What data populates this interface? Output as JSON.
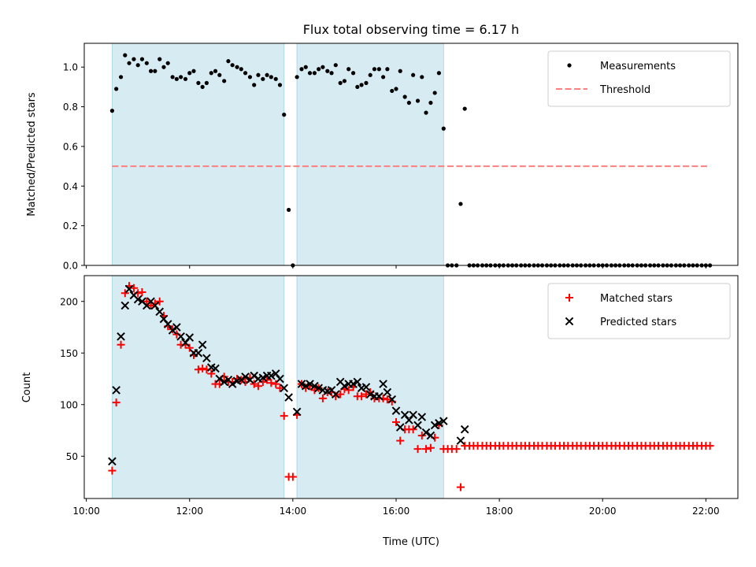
{
  "chart_data": [
    {
      "type": "scatter",
      "title": "Flux total observing time = 6.17 h",
      "xlabel": "",
      "ylabel": "Matched/Predicted stars",
      "xlim": [
        9.96,
        22.62
      ],
      "ylim": [
        0.0,
        1.12
      ],
      "yticks": [
        0.0,
        0.2,
        0.4,
        0.6,
        0.8,
        1.0
      ],
      "ytick_labels": [
        "0.0",
        "0.2",
        "0.4",
        "0.6",
        "0.8",
        "1.0"
      ],
      "xticks": [
        10,
        12,
        14,
        16,
        18,
        20,
        22
      ],
      "shaded_spans": [
        [
          10.5,
          13.83
        ],
        [
          14.08,
          16.92
        ]
      ],
      "shade_color": "#add8e6",
      "legend_position": "upper right",
      "series": [
        {
          "name": "Measurements",
          "marker": "dot",
          "color": "#000000",
          "x": [
            10.5,
            10.58,
            10.67,
            10.75,
            10.83,
            10.92,
            11.0,
            11.08,
            11.17,
            11.25,
            11.33,
            11.42,
            11.5,
            11.58,
            11.67,
            11.75,
            11.83,
            11.92,
            12.0,
            12.08,
            12.17,
            12.25,
            12.33,
            12.42,
            12.5,
            12.58,
            12.67,
            12.75,
            12.83,
            12.92,
            13.0,
            13.08,
            13.17,
            13.25,
            13.33,
            13.42,
            13.5,
            13.58,
            13.67,
            13.75,
            13.83,
            13.92,
            14.0,
            14.08,
            14.17,
            14.25,
            14.33,
            14.42,
            14.5,
            14.58,
            14.67,
            14.75,
            14.83,
            14.92,
            15.0,
            15.08,
            15.17,
            15.25,
            15.33,
            15.42,
            15.5,
            15.58,
            15.67,
            15.75,
            15.83,
            15.92,
            16.0,
            16.08,
            16.17,
            16.25,
            16.33,
            16.42,
            16.5,
            16.58,
            16.67,
            16.75,
            16.83,
            16.92,
            17.0,
            17.08,
            17.17,
            17.25,
            17.33,
            17.42,
            17.5,
            17.58,
            17.67,
            17.75,
            17.83,
            17.92,
            18.0,
            18.08,
            18.17,
            18.25,
            18.33,
            18.42,
            18.5,
            18.58,
            18.67,
            18.75,
            18.83,
            18.92,
            19.0,
            19.08,
            19.17,
            19.25,
            19.33,
            19.42,
            19.5,
            19.58,
            19.67,
            19.75,
            19.83,
            19.92,
            20.0,
            20.08,
            20.17,
            20.25,
            20.33,
            20.42,
            20.5,
            20.58,
            20.67,
            20.75,
            20.83,
            20.92,
            21.0,
            21.08,
            21.17,
            21.25,
            21.33,
            21.42,
            21.5,
            21.58,
            21.67,
            21.75,
            21.83,
            21.92,
            22.0,
            22.08
          ],
          "y": [
            0.78,
            0.89,
            0.95,
            1.06,
            1.02,
            1.04,
            1.01,
            1.04,
            1.02,
            0.98,
            0.98,
            1.04,
            1.0,
            1.02,
            0.95,
            0.94,
            0.95,
            0.94,
            0.97,
            0.98,
            0.92,
            0.9,
            0.92,
            0.97,
            0.98,
            0.96,
            0.93,
            1.03,
            1.01,
            1.0,
            0.99,
            0.97,
            0.95,
            0.91,
            0.96,
            0.94,
            0.96,
            0.95,
            0.94,
            0.91,
            0.76,
            0.28,
            0.0,
            0.95,
            0.99,
            1.0,
            0.97,
            0.97,
            0.99,
            1.0,
            0.98,
            0.97,
            1.01,
            0.92,
            0.93,
            0.99,
            0.97,
            0.9,
            0.91,
            0.92,
            0.96,
            0.99,
            0.99,
            0.95,
            0.99,
            0.88,
            0.89,
            0.98,
            0.85,
            0.82,
            0.96,
            0.83,
            0.95,
            0.77,
            0.82,
            0.87,
            0.97,
            0.69,
            0.0,
            0.0,
            0.0,
            0.31,
            0.79,
            0.0,
            0.0,
            0.0,
            0.0,
            0.0,
            0.0,
            0.0,
            0.0,
            0.0,
            0.0,
            0.0,
            0.0,
            0.0,
            0.0,
            0.0,
            0.0,
            0.0,
            0.0,
            0.0,
            0.0,
            0.0,
            0.0,
            0.0,
            0.0,
            0.0,
            0.0,
            0.0,
            0.0,
            0.0,
            0.0,
            0.0,
            0.0,
            0.0,
            0.0,
            0.0,
            0.0,
            0.0,
            0.0,
            0.0,
            0.0,
            0.0,
            0.0,
            0.0,
            0.0,
            0.0,
            0.0,
            0.0,
            0.0,
            0.0,
            0.0,
            0.0,
            0.0,
            0.0,
            0.0,
            0.0,
            0.0,
            0.0
          ]
        },
        {
          "name": "Threshold",
          "marker": "dashed-line",
          "color": "#ff7f7f",
          "x": [
            10.5,
            22.08
          ],
          "y": [
            0.5,
            0.5
          ]
        }
      ]
    },
    {
      "type": "scatter",
      "title": "",
      "xlabel": "Time (UTC)",
      "ylabel": "Count",
      "xlim": [
        9.96,
        22.62
      ],
      "ylim": [
        9.0,
        225.0
      ],
      "yticks": [
        50,
        100,
        150,
        200
      ],
      "ytick_labels": [
        "50",
        "100",
        "150",
        "200"
      ],
      "xticks": [
        10,
        12,
        14,
        16,
        18,
        20,
        22
      ],
      "xtick_labels": [
        "10:00",
        "12:00",
        "14:00",
        "16:00",
        "18:00",
        "20:00",
        "22:00"
      ],
      "shaded_spans": [
        [
          10.5,
          13.83
        ],
        [
          14.08,
          16.92
        ]
      ],
      "shade_color": "#add8e6",
      "legend_position": "upper right",
      "series": [
        {
          "name": "Matched stars",
          "marker": "plus",
          "color": "#ff0000",
          "x": [
            10.5,
            10.58,
            10.67,
            10.75,
            10.83,
            10.92,
            11.0,
            11.08,
            11.17,
            11.25,
            11.33,
            11.42,
            11.5,
            11.58,
            11.67,
            11.75,
            11.83,
            11.92,
            12.0,
            12.08,
            12.17,
            12.25,
            12.33,
            12.42,
            12.5,
            12.58,
            12.67,
            12.75,
            12.83,
            12.92,
            13.0,
            13.08,
            13.17,
            13.25,
            13.33,
            13.42,
            13.5,
            13.58,
            13.67,
            13.75,
            13.83,
            13.92,
            14.0,
            14.08,
            14.17,
            14.25,
            14.33,
            14.42,
            14.5,
            14.58,
            14.67,
            14.75,
            14.83,
            14.92,
            15.0,
            15.08,
            15.17,
            15.25,
            15.33,
            15.42,
            15.5,
            15.58,
            15.67,
            15.75,
            15.83,
            15.92,
            16.0,
            16.08,
            16.17,
            16.25,
            16.33,
            16.42,
            16.5,
            16.58,
            16.67,
            16.75,
            16.83,
            16.92,
            17.0,
            17.08,
            17.17,
            17.25,
            17.33,
            17.42,
            17.5,
            17.58,
            17.67,
            17.75,
            17.83,
            17.92,
            18.0,
            18.08,
            18.17,
            18.25,
            18.33,
            18.42,
            18.5,
            18.58,
            18.67,
            18.75,
            18.83,
            18.92,
            19.0,
            19.08,
            19.17,
            19.25,
            19.33,
            19.42,
            19.5,
            19.58,
            19.67,
            19.75,
            19.83,
            19.92,
            20.0,
            20.08,
            20.17,
            20.25,
            20.33,
            20.42,
            20.5,
            20.58,
            20.67,
            20.75,
            20.83,
            20.92,
            21.0,
            21.08,
            21.17,
            21.25,
            21.33,
            21.42,
            21.5,
            21.58,
            21.67,
            21.75,
            21.83,
            21.92,
            22.0,
            22.08
          ],
          "y": [
            36,
            102,
            158,
            208,
            215,
            213,
            208,
            209,
            200,
            196,
            198,
            200,
            186,
            176,
            173,
            168,
            158,
            158,
            155,
            148,
            134,
            135,
            134,
            130,
            120,
            120,
            127,
            122,
            122,
            125,
            124,
            122,
            126,
            120,
            118,
            122,
            124,
            121,
            120,
            116,
            89,
            30,
            30,
            90,
            120,
            116,
            118,
            114,
            116,
            106,
            112,
            112,
            108,
            110,
            115,
            114,
            117,
            108,
            108,
            110,
            112,
            106,
            106,
            106,
            105,
            103,
            83,
            65,
            76,
            76,
            76,
            57,
            70,
            57,
            58,
            68,
            80,
            57,
            57,
            57,
            57,
            20,
            60,
            60,
            60,
            60,
            60,
            60,
            60,
            60,
            60,
            60,
            60,
            60,
            60,
            60,
            60,
            60,
            60,
            60,
            60,
            60,
            60,
            60,
            60,
            60,
            60,
            60,
            60,
            60,
            60,
            60,
            60,
            60,
            60,
            60,
            60,
            60,
            60,
            60,
            60,
            60,
            60,
            60,
            60,
            60,
            60,
            60,
            60,
            60,
            60,
            60,
            60,
            60,
            60,
            60,
            60,
            60,
            60,
            60
          ]
        },
        {
          "name": "Predicted stars",
          "marker": "x",
          "color": "#000000",
          "x": [
            10.5,
            10.58,
            10.67,
            10.75,
            10.83,
            10.92,
            11.0,
            11.08,
            11.17,
            11.25,
            11.33,
            11.42,
            11.5,
            11.58,
            11.67,
            11.75,
            11.83,
            11.92,
            12.0,
            12.08,
            12.17,
            12.25,
            12.33,
            12.42,
            12.5,
            12.58,
            12.67,
            12.75,
            12.83,
            12.92,
            13.0,
            13.08,
            13.17,
            13.25,
            13.33,
            13.42,
            13.5,
            13.58,
            13.67,
            13.75,
            13.83,
            13.92,
            14.08,
            14.17,
            14.25,
            14.33,
            14.42,
            14.5,
            14.58,
            14.67,
            14.75,
            14.83,
            14.92,
            15.0,
            15.08,
            15.17,
            15.25,
            15.33,
            15.42,
            15.5,
            15.58,
            15.67,
            15.75,
            15.83,
            15.92,
            16.0,
            16.08,
            16.17,
            16.25,
            16.33,
            16.42,
            16.5,
            16.58,
            16.67,
            16.75,
            16.83,
            16.92,
            17.25,
            17.33
          ],
          "y": [
            45,
            114,
            166,
            196,
            212,
            206,
            202,
            200,
            196,
            200,
            196,
            190,
            183,
            178,
            172,
            175,
            166,
            160,
            165,
            150,
            150,
            158,
            145,
            136,
            135,
            125,
            122,
            124,
            120,
            123,
            124,
            127,
            124,
            128,
            125,
            126,
            128,
            128,
            130,
            125,
            116,
            107,
            93,
            120,
            118,
            120,
            118,
            116,
            114,
            113,
            114,
            110,
            122,
            118,
            120,
            120,
            122,
            116,
            117,
            110,
            108,
            108,
            120,
            112,
            105,
            94,
            78,
            90,
            85,
            90,
            80,
            88,
            73,
            70,
            80,
            82,
            84,
            65,
            76
          ]
        }
      ]
    }
  ]
}
